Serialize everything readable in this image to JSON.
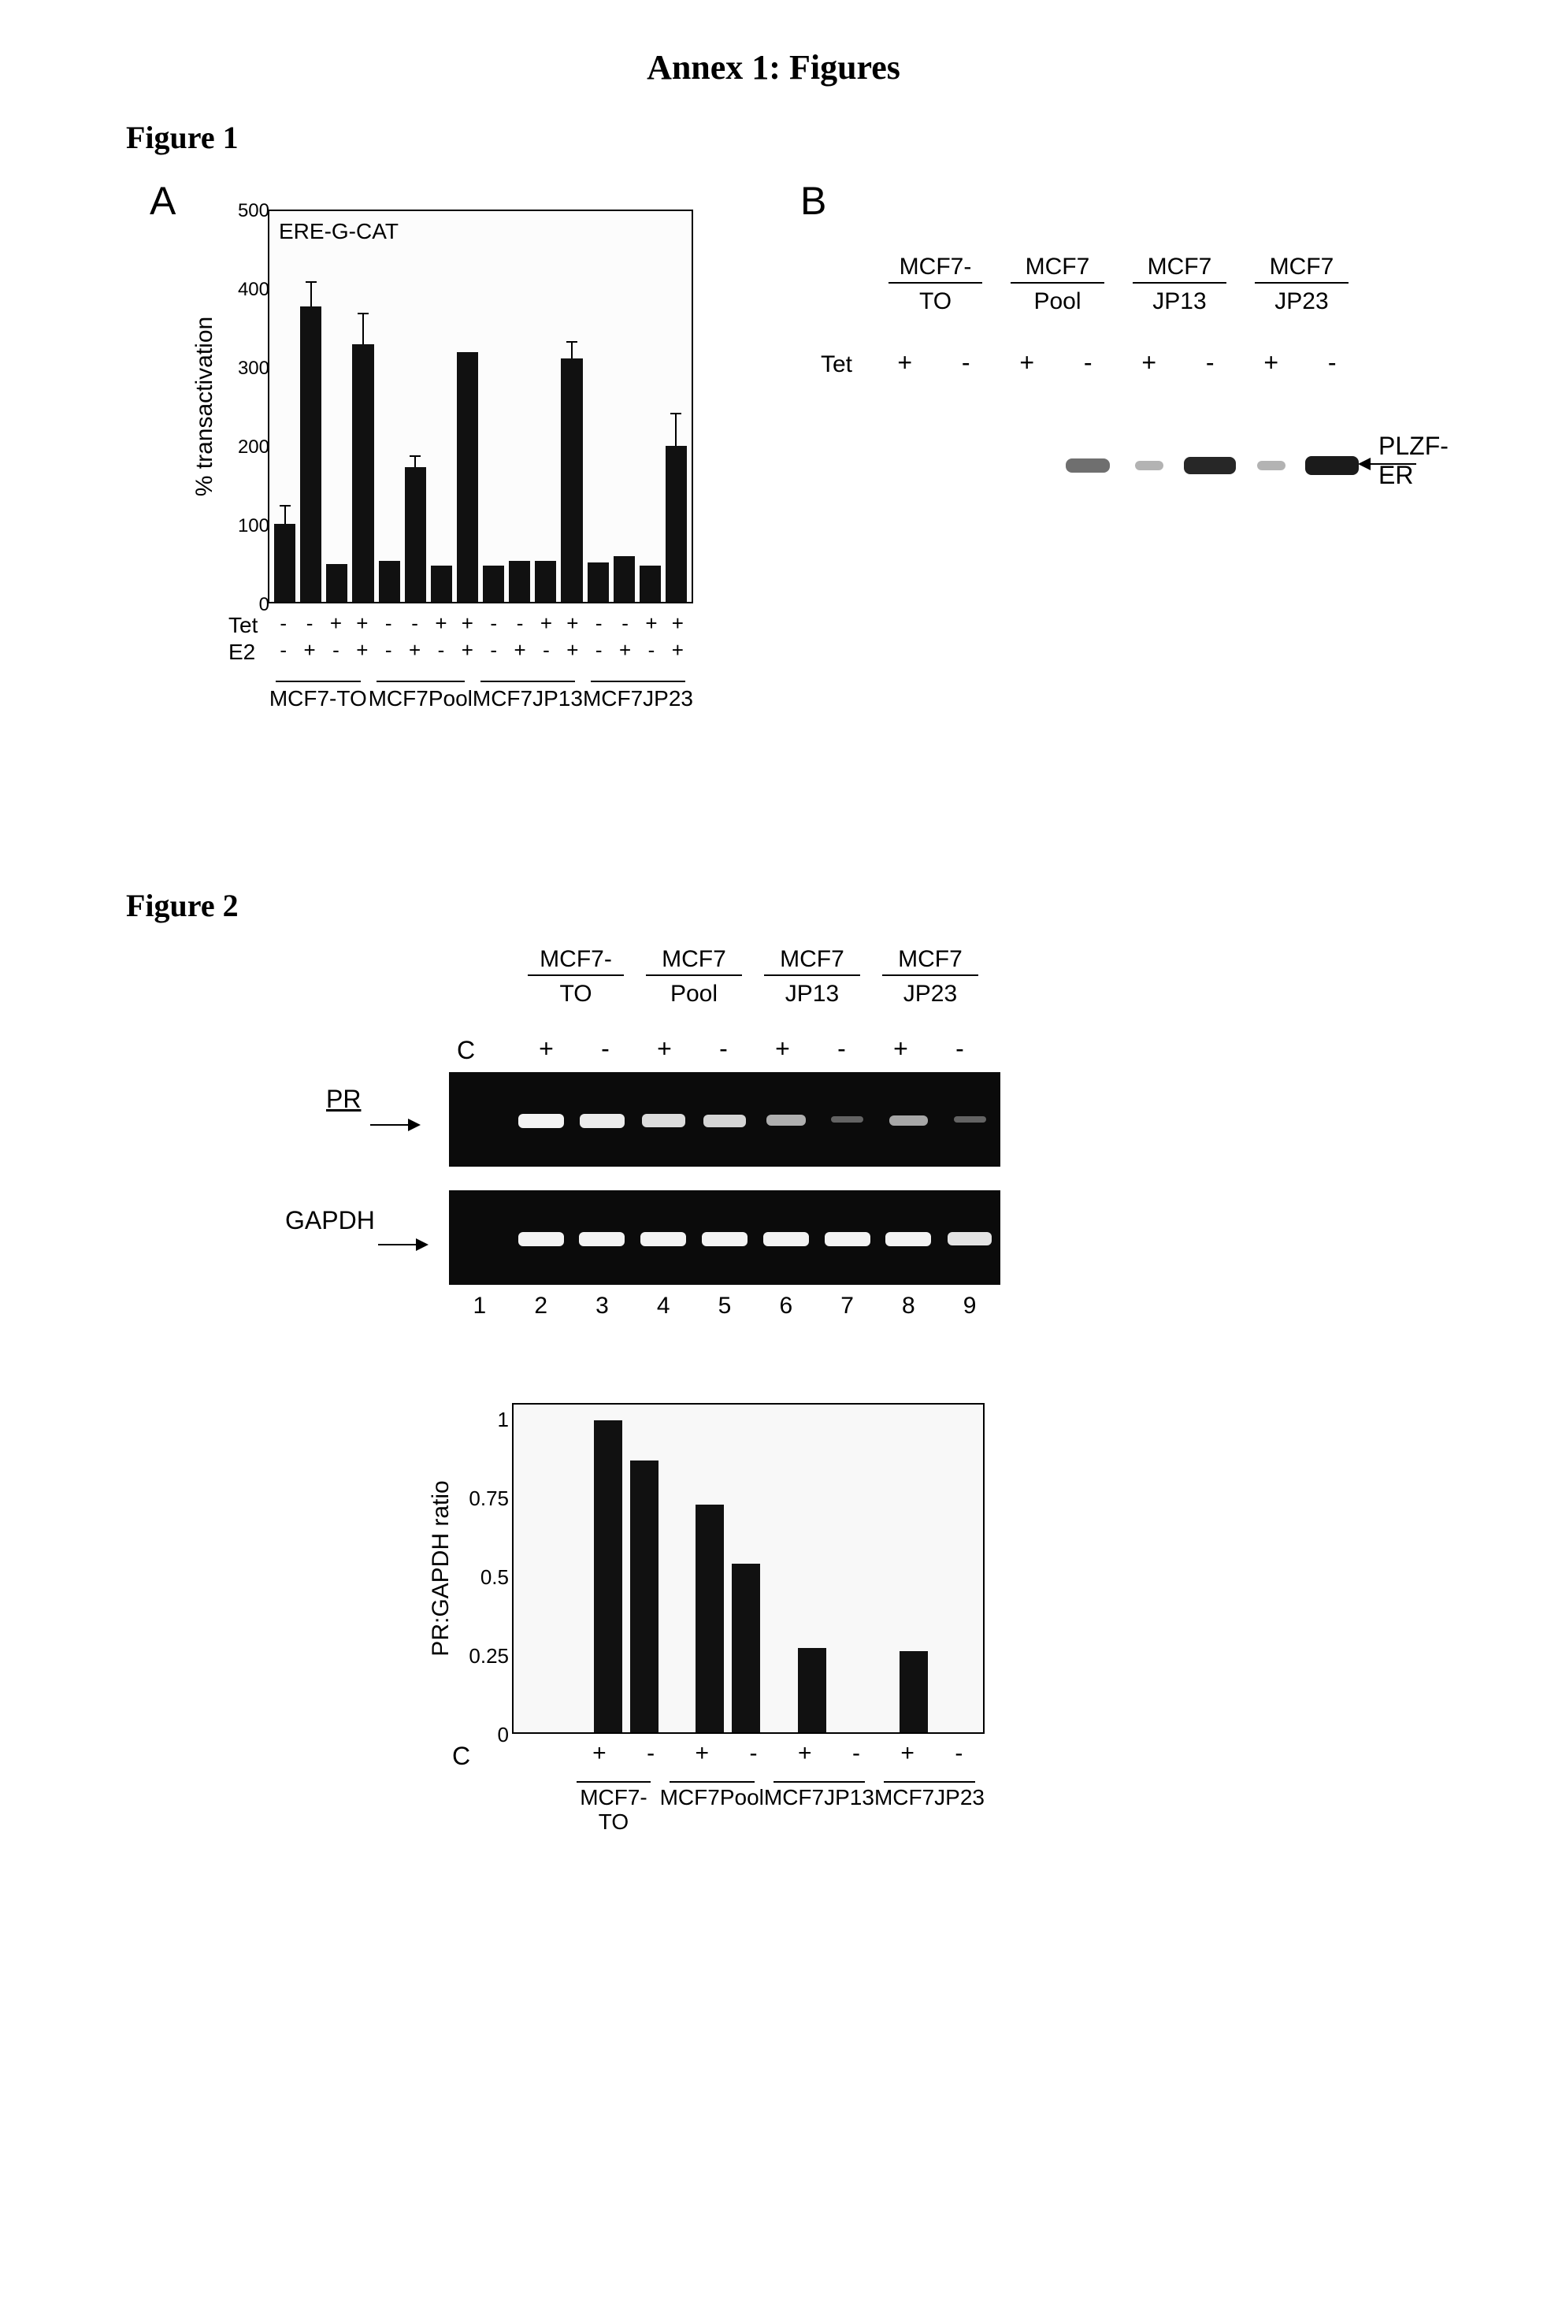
{
  "pageTitle": "Annex 1: Figures",
  "figure1": {
    "heading": "Figure 1",
    "panelA": {
      "letter": "A",
      "chart": {
        "type": "bar",
        "note": "ERE-G-CAT",
        "ylabel": "% transactivation",
        "ylim": [
          0,
          500
        ],
        "yticks": [
          0,
          100,
          200,
          300,
          400,
          500
        ],
        "bar_color": "#111111",
        "background_color": "#fcfcfc",
        "border_color": "#000000",
        "values": [
          100,
          378,
          48,
          330,
          52,
          172,
          46,
          320,
          46,
          52,
          52,
          312,
          50,
          58,
          46,
          200
        ],
        "errors": [
          22,
          30,
          0,
          38,
          0,
          14,
          0,
          0,
          0,
          0,
          0,
          20,
          0,
          0,
          0,
          40
        ],
        "axis_rows": {
          "Tet": [
            "-",
            "-",
            "+",
            "+",
            "-",
            "-",
            "+",
            "+",
            "-",
            "-",
            "+",
            "+",
            "-",
            "-",
            "+",
            "+"
          ],
          "E2": [
            "-",
            "+",
            "-",
            "+",
            "-",
            "+",
            "-",
            "+",
            "-",
            "+",
            "-",
            "+",
            "-",
            "+",
            "-",
            "+"
          ]
        },
        "groups": [
          {
            "line1": "MCF7-",
            "line2": "TO"
          },
          {
            "line1": "MCF7",
            "line2": "Pool"
          },
          {
            "line1": "MCF7",
            "line2": "JP13"
          },
          {
            "line1": "MCF7",
            "line2": "JP23"
          }
        ]
      }
    },
    "panelB": {
      "letter": "B",
      "groups": [
        {
          "line1": "MCF7-",
          "line2": "TO"
        },
        {
          "line1": "MCF7",
          "line2": "Pool"
        },
        {
          "line1": "MCF7",
          "line2": "JP13"
        },
        {
          "line1": "MCF7",
          "line2": "JP23"
        }
      ],
      "tet_label": "Tet",
      "tet_row": [
        [
          "+",
          "-"
        ],
        [
          "+",
          "-"
        ],
        [
          "+",
          "-"
        ],
        [
          "+",
          "-"
        ]
      ],
      "band_label": "PLZF-ER",
      "bands": [
        {
          "lane": 3,
          "intensity": 0.55,
          "width": 56,
          "color": "#3a3a3a"
        },
        {
          "lane": 4,
          "intensity": 0.18,
          "width": 36,
          "color": "#6a6a6a"
        },
        {
          "lane": 5,
          "intensity": 0.9,
          "width": 66,
          "color": "#1a1a1a"
        },
        {
          "lane": 6,
          "intensity": 0.18,
          "width": 36,
          "color": "#6a6a6a"
        },
        {
          "lane": 7,
          "intensity": 0.95,
          "width": 68,
          "color": "#141414"
        }
      ],
      "lane_width": 77.5
    }
  },
  "figure2": {
    "heading": "Figure 2",
    "groups": [
      {
        "line1": "MCF7-",
        "line2": "TO"
      },
      {
        "line1": "MCF7",
        "line2": "Pool"
      },
      {
        "line1": "MCF7",
        "line2": "JP13"
      },
      {
        "line1": "MCF7",
        "line2": "JP23"
      }
    ],
    "c_label": "C",
    "cond_row": [
      [
        "+",
        "-"
      ],
      [
        "+",
        "-"
      ],
      [
        "+",
        "-"
      ],
      [
        "+",
        "-"
      ]
    ],
    "gels": {
      "PR": {
        "label": "PR",
        "background_color": "#0b0b0b",
        "band_color": "#f3f3f3",
        "lanes": [
          0,
          1,
          0.95,
          0.85,
          0.8,
          0.55,
          0.05,
          0.5,
          0.05
        ]
      },
      "GAPDH": {
        "label": "GAPDH",
        "background_color": "#0b0b0b",
        "band_color": "#f3f3f3",
        "lanes": [
          0,
          1,
          1,
          1,
          1,
          1,
          1,
          1,
          0.9
        ]
      }
    },
    "lane_numbers": [
      "1",
      "2",
      "3",
      "4",
      "5",
      "6",
      "7",
      "8",
      "9"
    ],
    "chart": {
      "type": "bar",
      "ylabel": "PR:GAPDH ratio",
      "ylim": [
        0,
        1.05
      ],
      "yticks": [
        0,
        0.25,
        0.5,
        0.75,
        1
      ],
      "bar_color": "#111111",
      "background_color": "#f8f8f8",
      "border_color": "#000000",
      "c_column_value": 0,
      "groups": [
        {
          "label1": "MCF7-",
          "label2": "TO",
          "plus": 1.0,
          "minus": 0.87
        },
        {
          "label1": "MCF7",
          "label2": "Pool",
          "plus": 0.73,
          "minus": 0.54
        },
        {
          "label1": "MCF7",
          "label2": "JP13",
          "plus": 0.27,
          "minus": 0.0
        },
        {
          "label1": "MCF7",
          "label2": "JP23",
          "plus": 0.26,
          "minus": 0.0
        }
      ],
      "cond_row": [
        [
          "+",
          "-"
        ],
        [
          "+",
          "-"
        ],
        [
          "+",
          "-"
        ],
        [
          "+",
          "-"
        ]
      ]
    }
  }
}
